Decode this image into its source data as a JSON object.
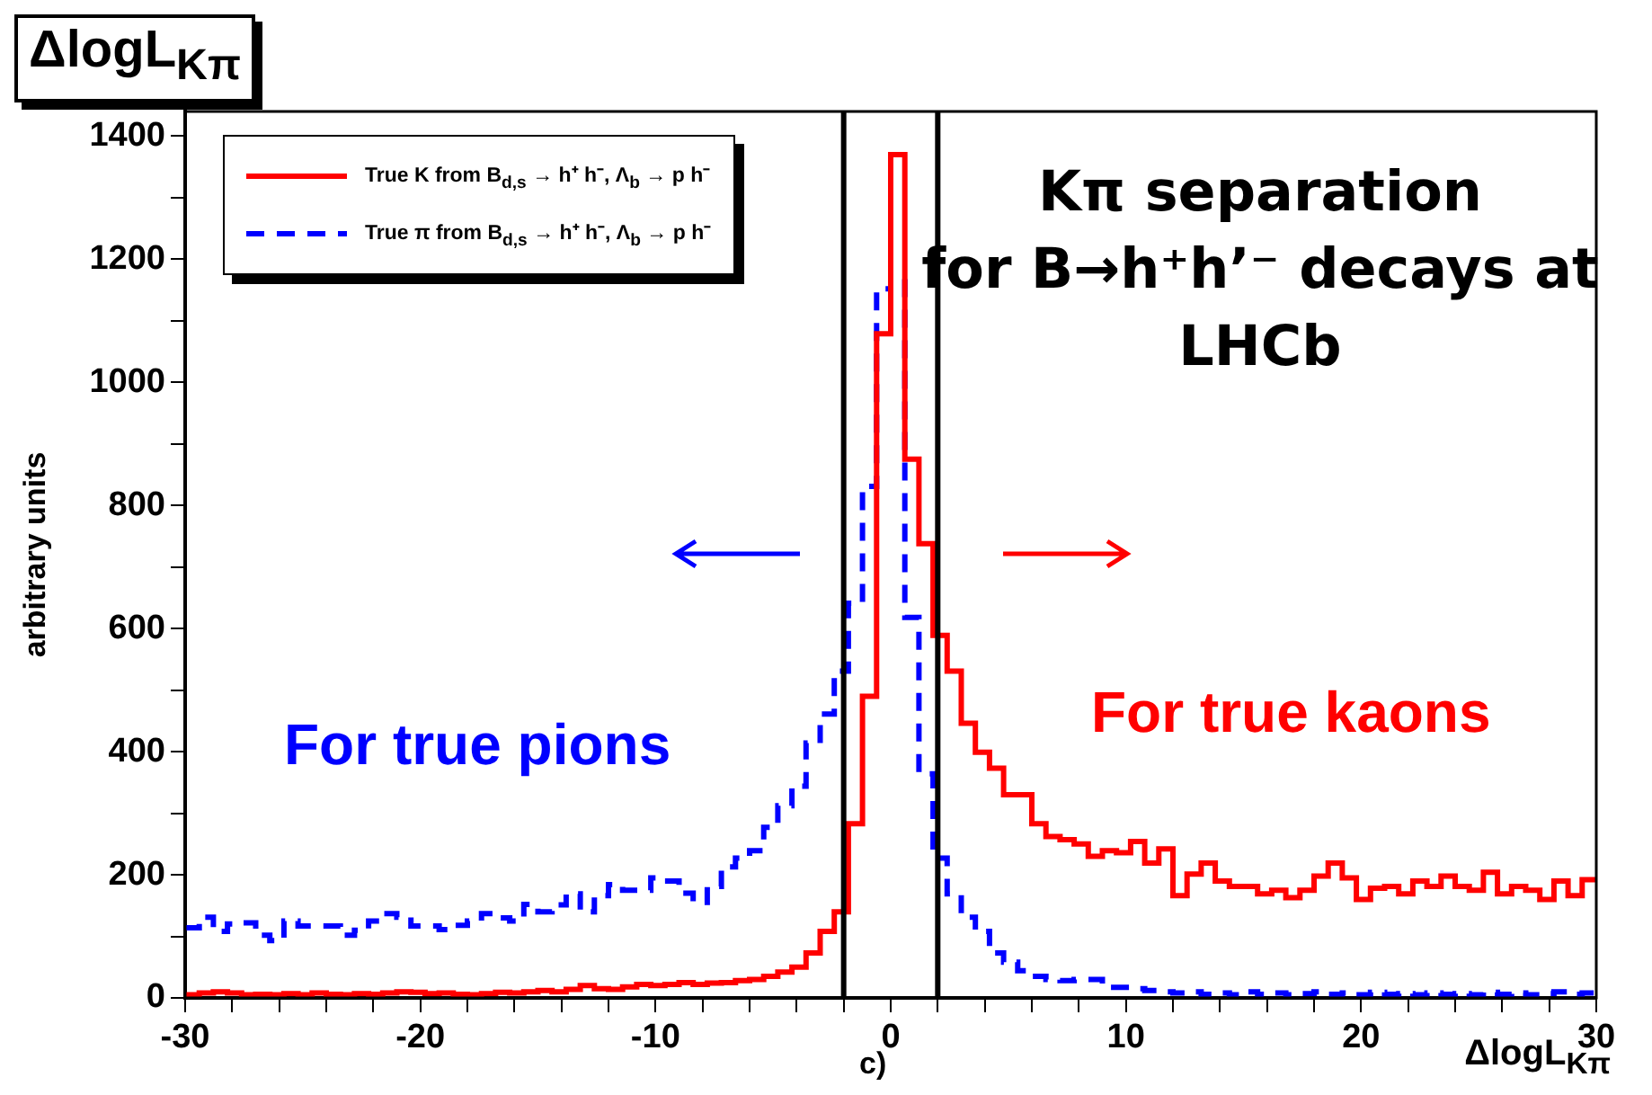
{
  "chart_data": {
    "type": "histogram",
    "title": "ΔlogL$_{Kπ}$",
    "xlabel": "ΔlogL$_{Kπ}$",
    "ylabel": "arbitrary units",
    "bins": [
      -30,
      -29.4,
      -28.8,
      -28.2,
      -27.6,
      -27,
      -26.4,
      -25.8,
      -25.2,
      -24.6,
      -24,
      -23.4,
      -22.8,
      -22.2,
      -21.6,
      -21,
      -20.4,
      -19.8,
      -19.2,
      -18.6,
      -18,
      -17.4,
      -16.8,
      -16.2,
      -15.6,
      -15,
      -14.4,
      -13.8,
      -13.2,
      -12.6,
      -12,
      -11.4,
      -10.8,
      -10.2,
      -9.6,
      -9,
      -8.4,
      -7.8,
      -7.2,
      -6.6,
      -6,
      -5.4,
      -4.8,
      -4.2,
      -3.6,
      -3,
      -2.4,
      -1.8,
      -1.2,
      -0.6,
      0,
      0.6,
      1.2,
      1.8,
      2.4,
      3,
      3.6,
      4.2,
      4.8,
      5.4,
      6,
      6.6,
      7.2,
      7.8,
      8.4,
      9,
      9.6,
      10.2,
      10.8,
      11.4,
      12,
      12.6,
      13.2,
      13.8,
      14.4,
      15,
      15.6,
      16.2,
      16.8,
      17.4,
      18,
      18.6,
      19.2,
      19.8,
      20.4,
      21,
      21.6,
      22.2,
      22.8,
      23.4,
      24,
      24.6,
      25.2,
      25.8,
      26.4,
      27,
      27.6,
      28.2,
      28.8,
      29.4,
      30
    ],
    "series": [
      {
        "name": "True K from B$_{d,s}$ → h⁺ h⁻, Λ$_{b}$ → p h⁻",
        "color": "#ff0000",
        "line_style": "solid",
        "values": [
          5,
          8,
          10,
          8,
          5,
          6,
          5,
          7,
          5,
          8,
          6,
          5,
          7,
          6,
          8,
          10,
          9,
          7,
          8,
          6,
          5,
          7,
          9,
          8,
          10,
          12,
          10,
          14,
          20,
          15,
          14,
          18,
          22,
          20,
          22,
          25,
          22,
          24,
          25,
          28,
          30,
          35,
          42,
          50,
          73,
          108,
          140,
          283,
          490,
          1079,
          1370,
          875,
          738,
          589,
          531,
          446,
          399,
          373,
          330,
          330,
          283,
          262,
          257,
          250,
          230,
          239,
          236,
          254,
          219,
          242,
          166,
          201,
          219,
          190,
          181,
          181,
          169,
          175,
          163,
          175,
          198,
          219,
          195,
          160,
          178,
          181,
          169,
          190,
          181,
          198,
          181,
          175,
          204,
          169,
          181,
          175,
          160,
          190,
          166,
          192
        ]
      },
      {
        "name": "True π from B$_{d,s}$ → h⁺ h⁻,  Λ$_{b}$ → p h⁻",
        "color": "#0000ff",
        "line_style": "dashed",
        "values": [
          114,
          131,
          108,
          120,
          122,
          102,
          93,
          125,
          117,
          117,
          117,
          102,
          110,
          125,
          137,
          131,
          117,
          117,
          111,
          118,
          125,
          137,
          130,
          125,
          152,
          140,
          151,
          169,
          140,
          166,
          184,
          175,
          175,
          195,
          190,
          170,
          155,
          181,
          213,
          227,
          239,
          277,
          312,
          344,
          414,
          461,
          531,
          641,
          831,
          1152,
          1169,
          618,
          364,
          227,
          169,
          131,
          108,
          73,
          58,
          44,
          35,
          30,
          28,
          30,
          30,
          17,
          17,
          15,
          12,
          10,
          8,
          10,
          6,
          8,
          5,
          10,
          6,
          8,
          5,
          7,
          10,
          6,
          8,
          5,
          9,
          6,
          7,
          5,
          8,
          6,
          7,
          5,
          9,
          6,
          8,
          5,
          7,
          10,
          6,
          8
        ]
      }
    ],
    "xlim": [
      -30,
      30
    ],
    "ylim": [
      0,
      1440
    ],
    "xticks": [
      -30,
      {
        "value": -28,
        "label": null
      },
      {
        "value": -26,
        "label": null
      },
      {
        "value": -24,
        "label": null
      },
      {
        "value": -22,
        "label": null
      },
      -20,
      {
        "value": -18,
        "label": null
      },
      {
        "value": -16,
        "label": null
      },
      {
        "value": -14,
        "label": null
      },
      {
        "value": -12,
        "label": null
      },
      -10,
      {
        "value": -8,
        "label": null
      },
      {
        "value": -6,
        "label": null
      },
      {
        "value": -4,
        "label": null
      },
      {
        "value": -2,
        "label": null
      },
      0,
      {
        "value": 2,
        "label": null
      },
      {
        "value": 4,
        "label": null
      },
      {
        "value": 6,
        "label": null
      },
      {
        "value": 8,
        "label": null
      },
      10,
      {
        "value": 12,
        "label": null
      },
      {
        "value": 14,
        "label": null
      },
      {
        "value": 16,
        "label": null
      },
      {
        "value": 18,
        "label": null
      },
      20,
      {
        "value": 22,
        "label": null
      },
      {
        "value": 24,
        "label": null
      },
      {
        "value": 26,
        "label": null
      },
      {
        "value": 28,
        "label": null
      },
      30
    ],
    "yticks": [
      0,
      {
        "value": 100,
        "label": null
      },
      200,
      {
        "value": 300,
        "label": null
      },
      400,
      {
        "value": 500,
        "label": null
      },
      600,
      {
        "value": 700,
        "label": null
      },
      800,
      {
        "value": 900,
        "label": null
      },
      1000,
      {
        "value": 1100,
        "label": null
      },
      1200,
      {
        "value": 1300,
        "label": null
      },
      1400
    ],
    "ref_lines": [
      {
        "axis": "x",
        "value": -2,
        "color": "#000000"
      },
      {
        "axis": "x",
        "value": 2,
        "color": "#000000"
      }
    ],
    "annotations": [
      "Kπ separation\nfor B→h⁺h’⁻ decays at\nLHCb",
      "For true pions",
      "For true kaons",
      "c)"
    ],
    "legend": "top left"
  }
}
